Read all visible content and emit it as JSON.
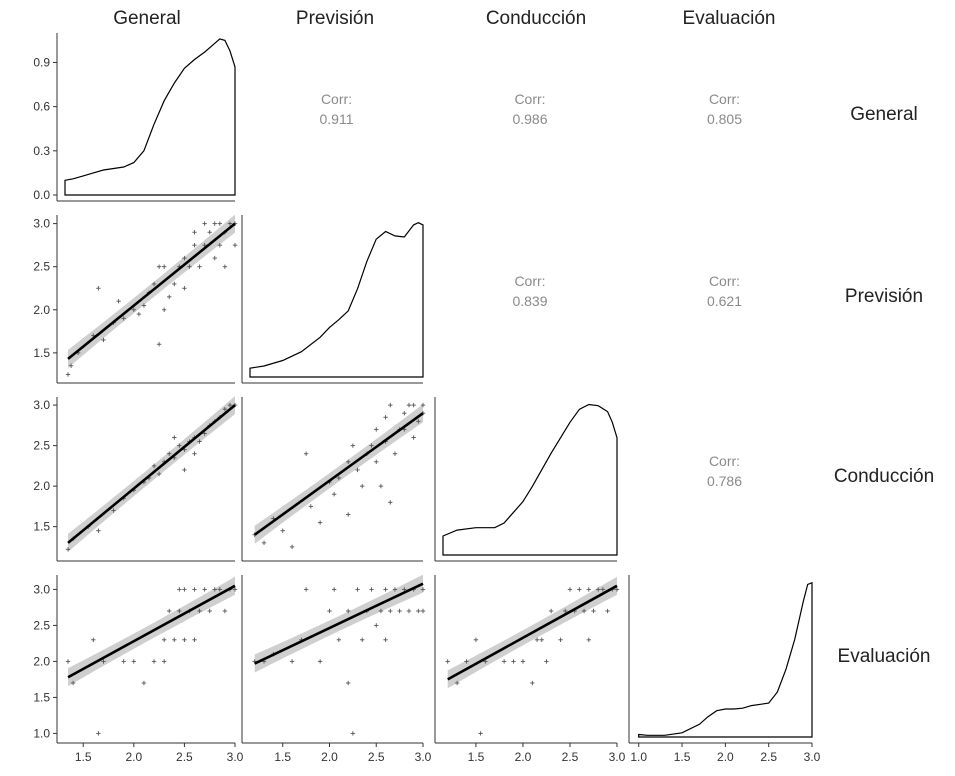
{
  "chart_data": {
    "type": "scatter",
    "variables": [
      "General",
      "Previsión",
      "Conducción",
      "Evaluación"
    ],
    "correlations": [
      {
        "row": 0,
        "col": 1,
        "label": "Corr:",
        "value": "0.911"
      },
      {
        "row": 0,
        "col": 2,
        "label": "Corr:",
        "value": "0.986"
      },
      {
        "row": 0,
        "col": 3,
        "label": "Corr:",
        "value": "0.805"
      },
      {
        "row": 1,
        "col": 2,
        "label": "Corr:",
        "value": "0.839"
      },
      {
        "row": 1,
        "col": 3,
        "label": "Corr:",
        "value": "0.621"
      },
      {
        "row": 2,
        "col": 3,
        "label": "Corr:",
        "value": "0.786"
      }
    ],
    "x_ranges": [
      [
        1.32,
        3.0
      ],
      [
        1.15,
        3.0
      ],
      [
        1.15,
        3.0
      ],
      [
        0.98,
        3.0
      ]
    ],
    "x_ticks": [
      [
        "1.5",
        "2.0",
        "2.5",
        "3.0"
      ],
      [
        "1.5",
        "2.0",
        "2.5",
        "3.0"
      ],
      [
        "1.5",
        "2.0",
        "2.5",
        "3.0"
      ],
      [
        "1.0",
        "1.5",
        "2.0",
        "2.5",
        "3.0"
      ]
    ],
    "density_ylim": [
      0,
      1.1
    ],
    "density_yticks": [
      "0.0",
      "0.3",
      "0.6",
      "0.9"
    ],
    "y_ranges": [
      null,
      [
        1.22,
        3.1
      ],
      [
        1.15,
        3.1
      ],
      [
        0.95,
        3.2
      ]
    ],
    "y_ticks": [
      null,
      [
        "1.5",
        "2.0",
        "2.5",
        "3.0"
      ],
      [
        "1.5",
        "2.0",
        "2.5",
        "3.0"
      ],
      [
        "1.0",
        "1.5",
        "2.0",
        "2.5",
        "3.0"
      ]
    ],
    "densities": [
      {
        "var": "General",
        "x": [
          1.32,
          1.4,
          1.5,
          1.6,
          1.7,
          1.8,
          1.9,
          2.0,
          2.1,
          2.2,
          2.3,
          2.4,
          2.5,
          2.6,
          2.7,
          2.8,
          2.85,
          2.9,
          2.95,
          3.0
        ],
        "y": [
          0.1,
          0.11,
          0.13,
          0.15,
          0.17,
          0.18,
          0.19,
          0.22,
          0.3,
          0.48,
          0.64,
          0.76,
          0.86,
          0.92,
          0.97,
          1.03,
          1.06,
          1.05,
          0.98,
          0.87
        ]
      },
      {
        "var": "Previsión",
        "x": [
          1.15,
          1.3,
          1.5,
          1.7,
          1.9,
          2.0,
          2.1,
          2.2,
          2.3,
          2.4,
          2.5,
          2.6,
          2.7,
          2.8,
          2.9,
          2.95,
          3.0
        ],
        "y": [
          0.08,
          0.1,
          0.15,
          0.23,
          0.36,
          0.45,
          0.52,
          0.6,
          0.8,
          1.05,
          1.25,
          1.32,
          1.28,
          1.27,
          1.38,
          1.4,
          1.38
        ]
      },
      {
        "var": "Conducción",
        "x": [
          1.15,
          1.3,
          1.5,
          1.6,
          1.7,
          1.8,
          1.9,
          2.0,
          2.1,
          2.2,
          2.3,
          2.4,
          2.5,
          2.6,
          2.7,
          2.8,
          2.9,
          2.95,
          3.0
        ],
        "y": [
          0.16,
          0.21,
          0.23,
          0.23,
          0.23,
          0.27,
          0.36,
          0.45,
          0.58,
          0.72,
          0.86,
          0.99,
          1.12,
          1.23,
          1.27,
          1.26,
          1.21,
          1.12,
          0.99
        ]
      },
      {
        "var": "Evaluación",
        "x": [
          1.0,
          1.1,
          1.3,
          1.5,
          1.7,
          1.8,
          1.9,
          2.0,
          2.1,
          2.2,
          2.3,
          2.5,
          2.6,
          2.7,
          2.8,
          2.9,
          2.95,
          3.0
        ],
        "y": [
          0.03,
          0.02,
          0.02,
          0.05,
          0.15,
          0.24,
          0.31,
          0.33,
          0.33,
          0.34,
          0.37,
          0.4,
          0.53,
          0.8,
          1.15,
          1.6,
          1.8,
          1.82
        ]
      }
    ],
    "fits": [
      {
        "row": 1,
        "col": 0,
        "x0": 1.35,
        "y0": 1.43,
        "x1": 3.0,
        "y1": 3.0
      },
      {
        "row": 2,
        "col": 0,
        "x0": 1.35,
        "y0": 1.3,
        "x1": 3.0,
        "y1": 3.0
      },
      {
        "row": 3,
        "col": 0,
        "x0": 1.35,
        "y0": 1.78,
        "x1": 3.0,
        "y1": 3.05
      },
      {
        "row": 2,
        "col": 1,
        "x0": 1.2,
        "y0": 1.4,
        "x1": 3.0,
        "y1": 2.9
      },
      {
        "row": 3,
        "col": 1,
        "x0": 1.2,
        "y0": 1.97,
        "x1": 3.0,
        "y1": 3.08
      },
      {
        "row": 3,
        "col": 2,
        "x0": 1.2,
        "y0": 1.75,
        "x1": 3.0,
        "y1": 3.05
      }
    ],
    "scatter": [
      {
        "row": 1,
        "col": 0,
        "points": [
          [
            1.35,
            1.25
          ],
          [
            1.38,
            1.35
          ],
          [
            1.45,
            1.5
          ],
          [
            1.6,
            1.7
          ],
          [
            1.65,
            2.25
          ],
          [
            1.7,
            1.65
          ],
          [
            1.8,
            1.85
          ],
          [
            1.85,
            2.1
          ],
          [
            1.9,
            1.9
          ],
          [
            2.0,
            2.0
          ],
          [
            2.05,
            1.95
          ],
          [
            2.1,
            2.05
          ],
          [
            2.15,
            2.2
          ],
          [
            2.2,
            2.3
          ],
          [
            2.25,
            1.6
          ],
          [
            2.25,
            2.5
          ],
          [
            2.3,
            2.5
          ],
          [
            2.3,
            2.0
          ],
          [
            2.35,
            2.15
          ],
          [
            2.4,
            2.3
          ],
          [
            2.45,
            2.5
          ],
          [
            2.5,
            2.6
          ],
          [
            2.5,
            2.25
          ],
          [
            2.55,
            2.5
          ],
          [
            2.6,
            2.75
          ],
          [
            2.65,
            2.5
          ],
          [
            2.7,
            2.75
          ],
          [
            2.75,
            2.9
          ],
          [
            2.8,
            2.6
          ],
          [
            2.8,
            3.0
          ],
          [
            2.85,
            2.75
          ],
          [
            2.9,
            2.9
          ],
          [
            2.95,
            3.0
          ],
          [
            2.9,
            2.5
          ],
          [
            3.0,
            3.0
          ],
          [
            3.0,
            2.75
          ],
          [
            2.85,
            3.0
          ],
          [
            2.7,
            3.0
          ],
          [
            2.6,
            2.9
          ]
        ]
      },
      {
        "row": 2,
        "col": 0,
        "points": [
          [
            1.35,
            1.22
          ],
          [
            1.4,
            1.35
          ],
          [
            1.55,
            1.5
          ],
          [
            1.65,
            1.45
          ],
          [
            1.8,
            1.7
          ],
          [
            1.9,
            1.85
          ],
          [
            2.0,
            1.95
          ],
          [
            2.1,
            2.05
          ],
          [
            2.15,
            2.1
          ],
          [
            2.2,
            2.25
          ],
          [
            2.25,
            2.15
          ],
          [
            2.3,
            2.3
          ],
          [
            2.35,
            2.4
          ],
          [
            2.4,
            2.35
          ],
          [
            2.45,
            2.5
          ],
          [
            2.5,
            2.45
          ],
          [
            2.55,
            2.55
          ],
          [
            2.6,
            2.6
          ],
          [
            2.65,
            2.55
          ],
          [
            2.7,
            2.65
          ],
          [
            2.75,
            2.75
          ],
          [
            2.8,
            2.8
          ],
          [
            2.85,
            2.85
          ],
          [
            2.9,
            2.95
          ],
          [
            2.95,
            3.0
          ],
          [
            3.0,
            3.0
          ],
          [
            2.5,
            2.2
          ],
          [
            2.4,
            2.6
          ],
          [
            2.6,
            2.4
          ]
        ]
      },
      {
        "row": 3,
        "col": 0,
        "points": [
          [
            1.35,
            2.0
          ],
          [
            1.4,
            1.7
          ],
          [
            1.6,
            2.3
          ],
          [
            1.65,
            1.0
          ],
          [
            1.7,
            2.0
          ],
          [
            1.9,
            2.0
          ],
          [
            2.0,
            2.0
          ],
          [
            2.1,
            1.7
          ],
          [
            2.2,
            2.0
          ],
          [
            2.3,
            2.3
          ],
          [
            2.35,
            2.7
          ],
          [
            2.4,
            2.3
          ],
          [
            2.45,
            2.7
          ],
          [
            2.5,
            2.3
          ],
          [
            2.5,
            3.0
          ],
          [
            2.55,
            2.7
          ],
          [
            2.6,
            2.3
          ],
          [
            2.6,
            3.0
          ],
          [
            2.65,
            2.7
          ],
          [
            2.7,
            3.0
          ],
          [
            2.75,
            2.7
          ],
          [
            2.8,
            3.0
          ],
          [
            2.85,
            3.0
          ],
          [
            2.9,
            2.7
          ],
          [
            2.95,
            3.0
          ],
          [
            3.0,
            3.0
          ],
          [
            2.3,
            2.0
          ],
          [
            2.45,
            3.0
          ]
        ]
      },
      {
        "row": 2,
        "col": 1,
        "points": [
          [
            1.2,
            1.4
          ],
          [
            1.3,
            1.3
          ],
          [
            1.4,
            1.6
          ],
          [
            1.5,
            1.45
          ],
          [
            1.6,
            1.25
          ],
          [
            1.75,
            2.4
          ],
          [
            1.8,
            1.75
          ],
          [
            1.9,
            1.55
          ],
          [
            2.0,
            2.05
          ],
          [
            2.05,
            1.9
          ],
          [
            2.1,
            2.1
          ],
          [
            2.2,
            2.3
          ],
          [
            2.2,
            1.65
          ],
          [
            2.25,
            2.5
          ],
          [
            2.3,
            2.2
          ],
          [
            2.35,
            2.0
          ],
          [
            2.4,
            2.4
          ],
          [
            2.45,
            2.5
          ],
          [
            2.5,
            2.3
          ],
          [
            2.5,
            2.7
          ],
          [
            2.55,
            2.0
          ],
          [
            2.6,
            2.55
          ],
          [
            2.6,
            2.85
          ],
          [
            2.65,
            3.0
          ],
          [
            2.7,
            2.4
          ],
          [
            2.75,
            2.7
          ],
          [
            2.8,
            2.9
          ],
          [
            2.85,
            3.0
          ],
          [
            2.9,
            2.6
          ],
          [
            2.95,
            2.8
          ],
          [
            3.0,
            2.9
          ],
          [
            3.0,
            3.0
          ],
          [
            2.9,
            3.0
          ],
          [
            2.8,
            2.7
          ],
          [
            2.65,
            1.8
          ]
        ]
      },
      {
        "row": 3,
        "col": 1,
        "points": [
          [
            1.2,
            2.0
          ],
          [
            1.3,
            2.0
          ],
          [
            1.4,
            2.1
          ],
          [
            1.6,
            2.0
          ],
          [
            1.7,
            2.3
          ],
          [
            1.75,
            3.0
          ],
          [
            1.9,
            2.0
          ],
          [
            2.0,
            2.7
          ],
          [
            2.05,
            3.0
          ],
          [
            2.1,
            2.3
          ],
          [
            2.2,
            2.7
          ],
          [
            2.25,
            1.0
          ],
          [
            2.3,
            3.0
          ],
          [
            2.35,
            2.3
          ],
          [
            2.4,
            2.7
          ],
          [
            2.45,
            3.0
          ],
          [
            2.5,
            2.5
          ],
          [
            2.55,
            2.7
          ],
          [
            2.6,
            3.0
          ],
          [
            2.6,
            2.3
          ],
          [
            2.65,
            2.7
          ],
          [
            2.7,
            3.0
          ],
          [
            2.75,
            2.7
          ],
          [
            2.8,
            3.0
          ],
          [
            2.85,
            2.7
          ],
          [
            2.9,
            3.0
          ],
          [
            2.95,
            2.7
          ],
          [
            3.0,
            3.0
          ],
          [
            3.0,
            2.7
          ],
          [
            2.2,
            1.7
          ]
        ]
      },
      {
        "row": 3,
        "col": 2,
        "points": [
          [
            1.2,
            2.0
          ],
          [
            1.3,
            1.7
          ],
          [
            1.4,
            2.0
          ],
          [
            1.5,
            2.3
          ],
          [
            1.55,
            1.0
          ],
          [
            1.6,
            2.0
          ],
          [
            1.8,
            2.0
          ],
          [
            1.9,
            2.0
          ],
          [
            2.0,
            2.0
          ],
          [
            2.1,
            1.7
          ],
          [
            2.15,
            2.3
          ],
          [
            2.2,
            2.3
          ],
          [
            2.25,
            2.0
          ],
          [
            2.3,
            2.7
          ],
          [
            2.4,
            2.3
          ],
          [
            2.45,
            2.7
          ],
          [
            2.5,
            3.0
          ],
          [
            2.55,
            2.7
          ],
          [
            2.6,
            3.0
          ],
          [
            2.65,
            2.7
          ],
          [
            2.7,
            3.0
          ],
          [
            2.75,
            2.7
          ],
          [
            2.8,
            3.0
          ],
          [
            2.85,
            3.0
          ],
          [
            2.9,
            2.7
          ],
          [
            2.95,
            3.0
          ],
          [
            3.0,
            3.0
          ],
          [
            2.7,
            2.3
          ]
        ]
      }
    ]
  }
}
